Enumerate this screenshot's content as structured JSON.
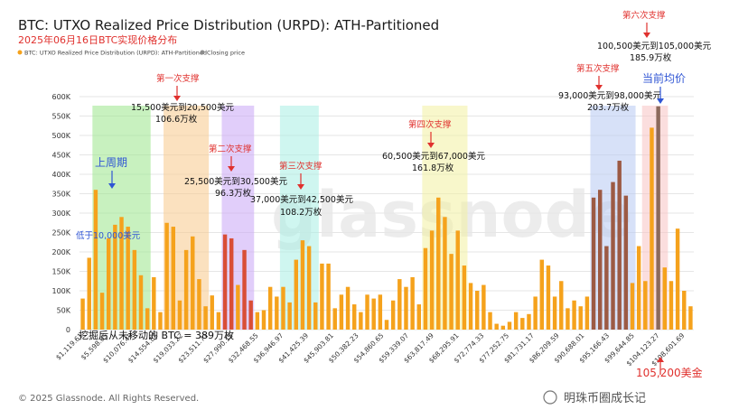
{
  "chart_data": {
    "type": "bar",
    "title": "BTC: UTXO Realized Price Distribution (URPD): ATH-Partitioned",
    "subtitle": "2025年06月16日BTC实现价格分布",
    "legend": [
      {
        "name": "BTC: UTXO Realized Price Distribution (URPD): ATH-Partitioned",
        "color": "#f5a21c"
      },
      {
        "name": "Closing price",
        "color": "#8c8c8c"
      }
    ],
    "yticks": [
      "0",
      "50K",
      "100K",
      "150K",
      "200K",
      "250K",
      "300K",
      "350K",
      "400K",
      "450K",
      "500K",
      "550K",
      "600K"
    ],
    "ylim": [
      0,
      600000
    ],
    "xtick_labels": [
      "$1,119.61",
      "$5,598.05",
      "$10,076.49",
      "$14,554.88",
      "$19,033.22",
      "$23,511.71",
      "$27,990.15",
      "$32,468.55",
      "$36,946.97",
      "$41,425.39",
      "$45,903.81",
      "$50,382.23",
      "$54,860.65",
      "$59,339.07",
      "$63,817.49",
      "$68,295.91",
      "$72,774.33",
      "$77,252.75",
      "$81,731.17",
      "$86,209.59",
      "$90,688.01",
      "$95,166.43",
      "$99,644.85",
      "$104,123.27",
      "$108,601.69"
    ],
    "values": [
      80000,
      185000,
      360000,
      95000,
      235000,
      270000,
      290000,
      265000,
      205000,
      140000,
      55000,
      135000,
      45000,
      275000,
      265000,
      75000,
      205000,
      240000,
      130000,
      60000,
      88000,
      45000,
      245000,
      235000,
      115000,
      205000,
      75000,
      45000,
      50000,
      110000,
      85000,
      110000,
      70000,
      180000,
      230000,
      215000,
      70000,
      170000,
      170000,
      55000,
      90000,
      110000,
      65000,
      45000,
      90000,
      80000,
      90000,
      25000,
      75000,
      130000,
      110000,
      135000,
      65000,
      210000,
      255000,
      340000,
      290000,
      195000,
      255000,
      165000,
      120000,
      100000,
      115000,
      45000,
      15000,
      10000,
      20000,
      45000,
      30000,
      40000,
      85000,
      180000,
      165000,
      85000,
      125000,
      55000,
      75000,
      60000,
      85000,
      340000,
      360000,
      215000,
      380000,
      435000,
      345000,
      120000,
      215000,
      125000,
      520000,
      575000,
      160000,
      125000,
      260000,
      100000,
      60000
    ],
    "bar_colors": [
      "#f5a21c",
      "#f5a21c",
      "#f5a21c",
      "#f5a21c",
      "#f5a21c",
      "#f5a21c",
      "#f5a21c",
      "#f5a21c",
      "#f5a21c",
      "#f5a21c",
      "#f5a21c",
      "#f5a21c",
      "#f5a21c",
      "#f5a21c",
      "#f5a21c",
      "#f5a21c",
      "#f5a21c",
      "#f5a21c",
      "#f5a21c",
      "#f5a21c",
      "#f5a21c",
      "#f5a21c",
      "#d94e36",
      "#d94e36",
      "#f5a21c",
      "#d94e36",
      "#d94e36",
      "#f5a21c",
      "#f5a21c",
      "#f5a21c",
      "#f5a21c",
      "#f5a21c",
      "#f5a21c",
      "#f5a21c",
      "#f5a21c",
      "#f5a21c",
      "#f5a21c",
      "#f5a21c",
      "#f5a21c",
      "#f5a21c",
      "#f5a21c",
      "#f5a21c",
      "#f5a21c",
      "#f5a21c",
      "#f5a21c",
      "#f5a21c",
      "#f5a21c",
      "#f5a21c",
      "#f5a21c",
      "#f5a21c",
      "#f5a21c",
      "#f5a21c",
      "#f5a21c",
      "#f5a21c",
      "#f5a21c",
      "#f5a21c",
      "#f5a21c",
      "#f5a21c",
      "#f5a21c",
      "#f5a21c",
      "#f5a21c",
      "#f5a21c",
      "#f5a21c",
      "#f5a21c",
      "#f5a21c",
      "#f5a21c",
      "#f5a21c",
      "#f5a21c",
      "#f5a21c",
      "#f5a21c",
      "#f5a21c",
      "#f5a21c",
      "#f5a21c",
      "#f5a21c",
      "#f5a21c",
      "#f5a21c",
      "#f5a21c",
      "#f5a21c",
      "#f5a21c",
      "#9c5a44",
      "#9c5a44",
      "#9c5a44",
      "#9c5a44",
      "#9c5a44",
      "#9c5a44",
      "#f5a21c",
      "#f5a21c",
      "#f5a21c",
      "#f5a21c",
      "#8c6a5c",
      "#f5a21c",
      "#f5a21c",
      "#f5a21c",
      "#f5a21c",
      "#f5a21c"
    ],
    "closing_price_bar_index": 89,
    "grid": true,
    "bands": [
      {
        "name": "上周期",
        "color": "#9be58a",
        "from_bar": 2,
        "to_bar": 10
      },
      {
        "name": "第一次支撑",
        "color": "#f7c98a",
        "from_bar": 13,
        "to_bar": 19
      },
      {
        "name": "第二次支撑",
        "color": "#c9a6f5",
        "from_bar": 22,
        "to_bar": 26
      },
      {
        "name": "第三次支撑",
        "color": "#a8eee4",
        "from_bar": 31,
        "to_bar": 36
      },
      {
        "name": "第四次支撑",
        "color": "#f3f0a0",
        "from_bar": 53,
        "to_bar": 59
      },
      {
        "name": "第五次支撑",
        "color": "#b6c8f3",
        "from_bar": 79,
        "to_bar": 85
      },
      {
        "name": "第六次支撑",
        "color": "#f7c3c3",
        "from_bar": 87,
        "to_bar": 90
      }
    ]
  },
  "annotations": {
    "support1": {
      "label": "第一次支撑",
      "range": "15,500美元到20,500美元",
      "amount": "106.6万枚"
    },
    "support2": {
      "label": "第二次支撑",
      "range": "25,500美元到30,500美元",
      "amount": "96.3万枚"
    },
    "support3": {
      "label": "第三次支撑",
      "range": "37,000美元到42,500美元",
      "amount": "108.2万枚"
    },
    "support4": {
      "label": "第四次支撑",
      "range": "60,500美元到67,000美元",
      "amount": "161.8万枚"
    },
    "support5": {
      "label": "第五次支撑",
      "range": "93,000美元到98,000美元",
      "amount": "203.7万枚"
    },
    "support6": {
      "label": "第六次支撑",
      "range": "100,500美元到105,000美元",
      "amount": "185.9万枚"
    },
    "last_cycle": {
      "label": "上周期",
      "note": "低于10,000美元"
    },
    "current_avg": {
      "label": "当前均价",
      "price": "105,200美金"
    },
    "unmoved_note": "挖掘后从未移动的 BTC = 389万枚"
  },
  "footer": {
    "copyright": "© 2025 Glassnode. All Rights Reserved.",
    "watermark_text": "明珠币圈成长记",
    "logo_text": "glassnode"
  }
}
